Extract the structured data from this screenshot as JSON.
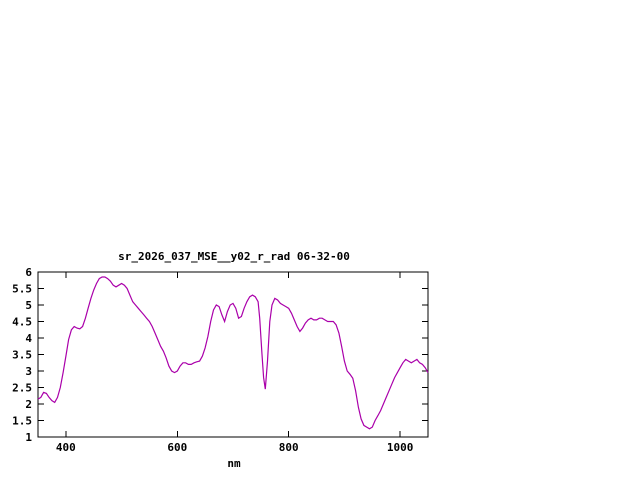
{
  "page": {
    "background": "#ffffff"
  },
  "chart": {
    "title": "sr_2026_037_MSE__y02_r_rad 06-32-00",
    "xlabel": "nm",
    "axis_color": "#000000",
    "line_color": "#aa00aa"
  },
  "chart_data": {
    "type": "line",
    "title": "sr_2026_037_MSE__y02_r_rad 06-32-00",
    "xlabel": "nm",
    "ylabel": "",
    "xlim": [
      350,
      1050
    ],
    "ylim": [
      1,
      6
    ],
    "xticks": [
      400,
      600,
      800,
      1000
    ],
    "yticks": [
      1,
      1.5,
      2,
      2.5,
      3,
      3.5,
      4,
      4.5,
      5,
      5.5,
      6
    ],
    "grid": false,
    "legend": "none",
    "series": [
      {
        "name": "sr_2026_037_MSE__y02_r_rad",
        "color": "#aa00aa",
        "points": [
          [
            350,
            2.15
          ],
          [
            355,
            2.2
          ],
          [
            360,
            2.35
          ],
          [
            365,
            2.32
          ],
          [
            370,
            2.2
          ],
          [
            375,
            2.1
          ],
          [
            380,
            2.05
          ],
          [
            385,
            2.2
          ],
          [
            390,
            2.5
          ],
          [
            395,
            2.95
          ],
          [
            400,
            3.45
          ],
          [
            405,
            3.95
          ],
          [
            410,
            4.25
          ],
          [
            415,
            4.35
          ],
          [
            420,
            4.3
          ],
          [
            425,
            4.28
          ],
          [
            430,
            4.35
          ],
          [
            435,
            4.6
          ],
          [
            440,
            4.9
          ],
          [
            445,
            5.2
          ],
          [
            450,
            5.45
          ],
          [
            455,
            5.65
          ],
          [
            460,
            5.8
          ],
          [
            465,
            5.85
          ],
          [
            470,
            5.85
          ],
          [
            475,
            5.8
          ],
          [
            480,
            5.72
          ],
          [
            485,
            5.6
          ],
          [
            490,
            5.55
          ],
          [
            495,
            5.6
          ],
          [
            500,
            5.65
          ],
          [
            505,
            5.6
          ],
          [
            510,
            5.5
          ],
          [
            515,
            5.3
          ],
          [
            520,
            5.1
          ],
          [
            525,
            5.0
          ],
          [
            530,
            4.9
          ],
          [
            535,
            4.8
          ],
          [
            540,
            4.7
          ],
          [
            545,
            4.6
          ],
          [
            550,
            4.5
          ],
          [
            555,
            4.35
          ],
          [
            560,
            4.15
          ],
          [
            565,
            3.95
          ],
          [
            570,
            3.75
          ],
          [
            575,
            3.6
          ],
          [
            580,
            3.4
          ],
          [
            585,
            3.15
          ],
          [
            590,
            3.0
          ],
          [
            595,
            2.95
          ],
          [
            600,
            3.0
          ],
          [
            605,
            3.15
          ],
          [
            610,
            3.25
          ],
          [
            615,
            3.25
          ],
          [
            620,
            3.2
          ],
          [
            625,
            3.2
          ],
          [
            630,
            3.25
          ],
          [
            635,
            3.28
          ],
          [
            640,
            3.3
          ],
          [
            645,
            3.45
          ],
          [
            650,
            3.7
          ],
          [
            655,
            4.05
          ],
          [
            660,
            4.5
          ],
          [
            665,
            4.85
          ],
          [
            670,
            5.0
          ],
          [
            675,
            4.95
          ],
          [
            680,
            4.7
          ],
          [
            685,
            4.5
          ],
          [
            690,
            4.8
          ],
          [
            695,
            5.0
          ],
          [
            700,
            5.05
          ],
          [
            705,
            4.9
          ],
          [
            710,
            4.6
          ],
          [
            715,
            4.65
          ],
          [
            720,
            4.9
          ],
          [
            725,
            5.1
          ],
          [
            730,
            5.25
          ],
          [
            735,
            5.3
          ],
          [
            740,
            5.25
          ],
          [
            745,
            5.1
          ],
          [
            748,
            4.6
          ],
          [
            752,
            3.5
          ],
          [
            755,
            2.8
          ],
          [
            758,
            2.45
          ],
          [
            762,
            3.3
          ],
          [
            766,
            4.5
          ],
          [
            770,
            5.0
          ],
          [
            775,
            5.2
          ],
          [
            780,
            5.15
          ],
          [
            785,
            5.05
          ],
          [
            790,
            5.0
          ],
          [
            795,
            4.95
          ],
          [
            800,
            4.9
          ],
          [
            805,
            4.75
          ],
          [
            810,
            4.55
          ],
          [
            815,
            4.35
          ],
          [
            820,
            4.2
          ],
          [
            825,
            4.3
          ],
          [
            830,
            4.45
          ],
          [
            835,
            4.55
          ],
          [
            840,
            4.6
          ],
          [
            845,
            4.55
          ],
          [
            850,
            4.55
          ],
          [
            855,
            4.6
          ],
          [
            860,
            4.6
          ],
          [
            865,
            4.55
          ],
          [
            870,
            4.5
          ],
          [
            875,
            4.5
          ],
          [
            880,
            4.5
          ],
          [
            885,
            4.4
          ],
          [
            890,
            4.15
          ],
          [
            895,
            3.75
          ],
          [
            900,
            3.3
          ],
          [
            905,
            3.0
          ],
          [
            910,
            2.9
          ],
          [
            915,
            2.78
          ],
          [
            920,
            2.4
          ],
          [
            925,
            1.9
          ],
          [
            930,
            1.55
          ],
          [
            935,
            1.35
          ],
          [
            940,
            1.3
          ],
          [
            945,
            1.25
          ],
          [
            950,
            1.3
          ],
          [
            955,
            1.5
          ],
          [
            960,
            1.65
          ],
          [
            965,
            1.8
          ],
          [
            970,
            2.0
          ],
          [
            975,
            2.2
          ],
          [
            980,
            2.4
          ],
          [
            985,
            2.6
          ],
          [
            990,
            2.8
          ],
          [
            995,
            2.95
          ],
          [
            1000,
            3.1
          ],
          [
            1005,
            3.25
          ],
          [
            1010,
            3.35
          ],
          [
            1015,
            3.3
          ],
          [
            1020,
            3.25
          ],
          [
            1025,
            3.3
          ],
          [
            1030,
            3.35
          ],
          [
            1035,
            3.25
          ],
          [
            1040,
            3.2
          ],
          [
            1045,
            3.1
          ],
          [
            1050,
            2.95
          ]
        ]
      }
    ]
  }
}
